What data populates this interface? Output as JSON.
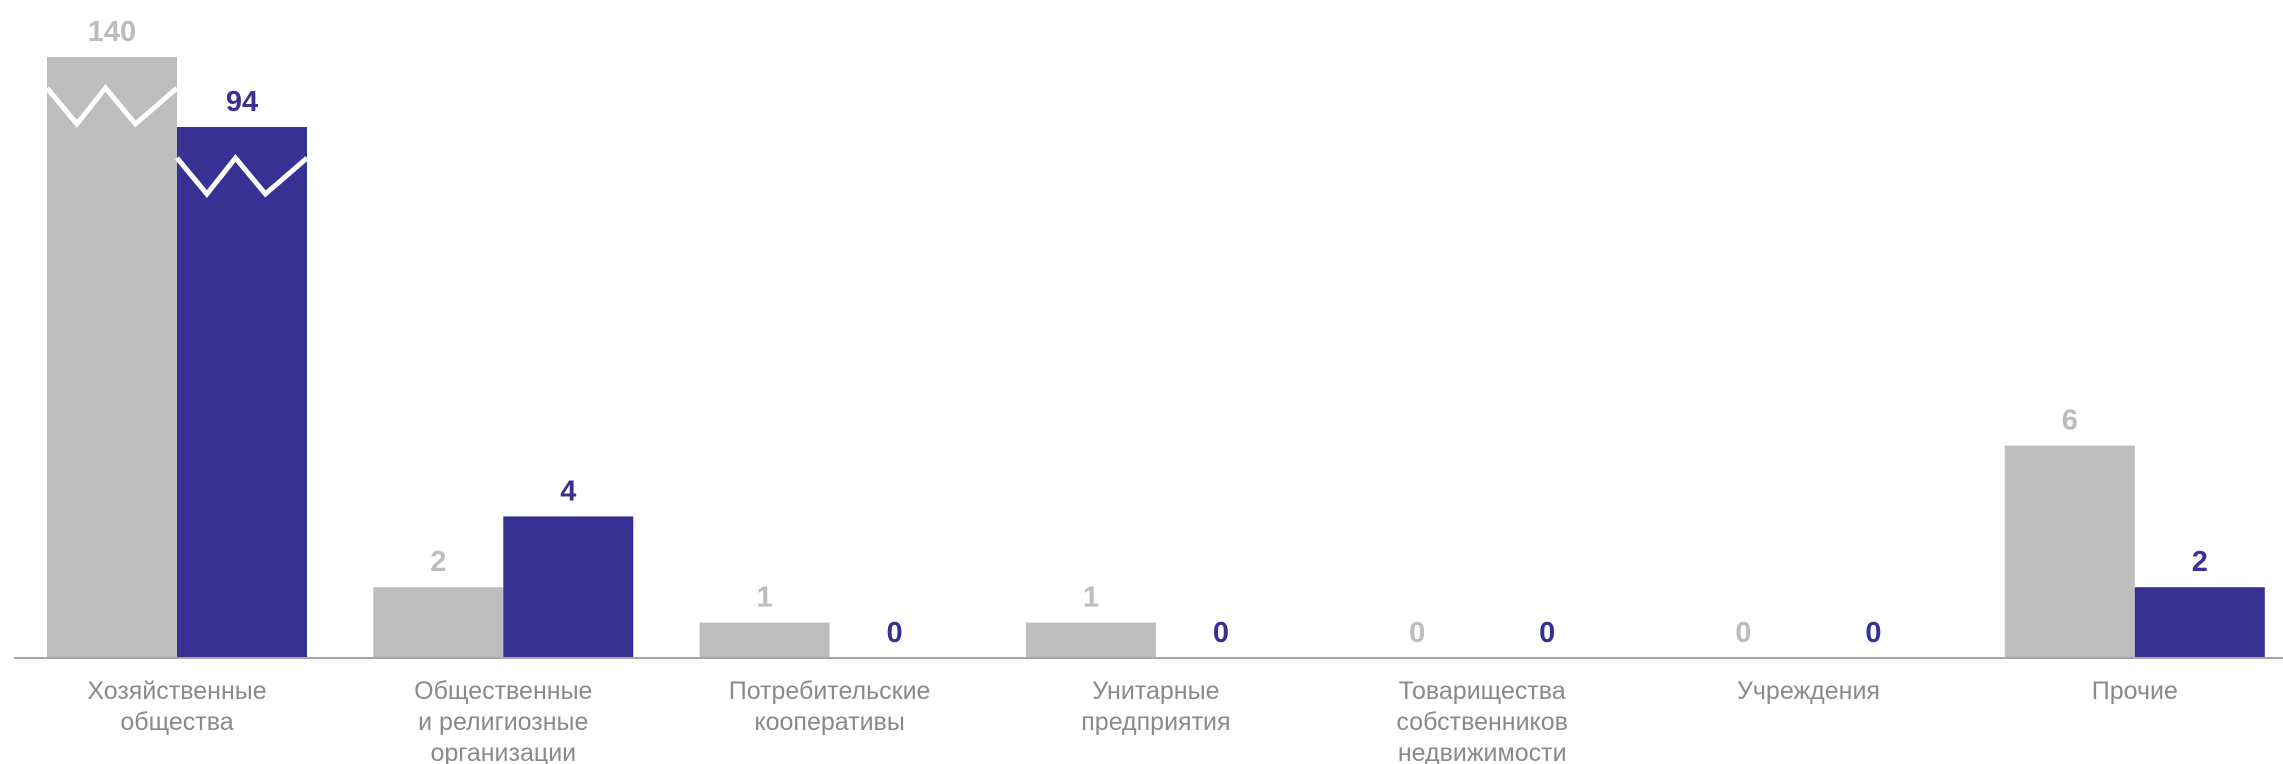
{
  "chart_data": {
    "type": "bar",
    "title": "",
    "xlabel": "",
    "ylabel": "",
    "axis_break": true,
    "grid": false,
    "legend": "none",
    "categories": [
      [
        "Хозяйственные",
        "общества"
      ],
      [
        "Общественные",
        "и религиозные",
        "организации"
      ],
      [
        "Потребительские",
        "кооперативы"
      ],
      [
        "Унитарные",
        "предприятия"
      ],
      [
        "Товарищества",
        "собственников",
        "недвижимости"
      ],
      [
        "Учреждения"
      ],
      [
        "Прочие"
      ]
    ],
    "series": [
      {
        "color": "#bdbdbd",
        "values": [
          140,
          2,
          1,
          1,
          0,
          0,
          6
        ]
      },
      {
        "color": "#373193",
        "values": [
          94,
          4,
          0,
          0,
          0,
          0,
          2
        ]
      }
    ]
  }
}
